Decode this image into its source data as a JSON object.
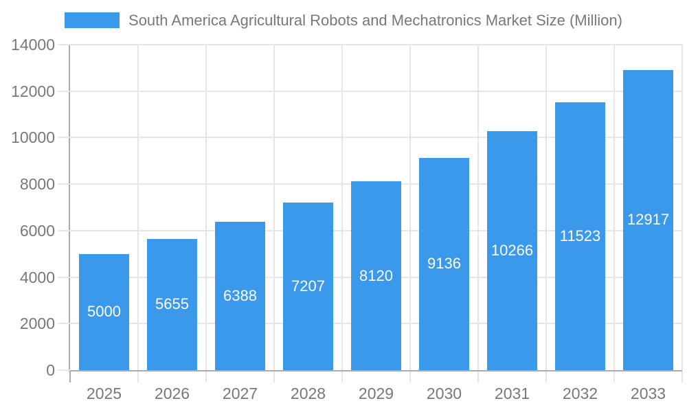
{
  "chart_data": {
    "type": "bar",
    "title": "South America Agricultural Robots and Mechatronics Market Size (Million)",
    "categories": [
      "2025",
      "2026",
      "2027",
      "2028",
      "2029",
      "2030",
      "2031",
      "2032",
      "2033"
    ],
    "values": [
      5000,
      5655,
      6388,
      7207,
      8120,
      9136,
      10266,
      11523,
      12917
    ],
    "xlabel": "",
    "ylabel": "",
    "ylim": [
      0,
      14000
    ],
    "ytick_step": 2000,
    "ytick_labels": [
      "0",
      "2000",
      "4000",
      "6000",
      "8000",
      "10000",
      "12000",
      "14000"
    ],
    "grid": true,
    "legend_position": "top",
    "value_labels": "inside-center"
  },
  "colors": {
    "bar": "#3b99ec",
    "grid": "#e6e6e6",
    "axis_line": "#ababab",
    "text": "#787878",
    "value_label": "#ffffff",
    "background": "#ffffff"
  }
}
